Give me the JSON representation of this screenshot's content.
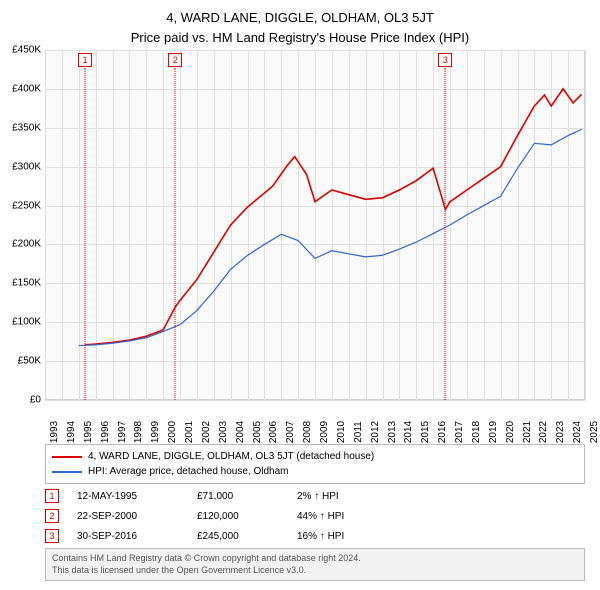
{
  "header": {
    "address": "4, WARD LANE, DIGGLE, OLDHAM, OL3 5JT",
    "subtitle": "Price paid vs. HM Land Registry's House Price Index (HPI)"
  },
  "chart": {
    "type": "line",
    "background_color": "#fafafa",
    "grid_color": "#e0e0e0",
    "border_color": "#d0d0d0",
    "x": {
      "min": 1993,
      "max": 2025,
      "ticks": [
        1993,
        1994,
        1995,
        1996,
        1997,
        1998,
        1999,
        2000,
        2001,
        2002,
        2003,
        2004,
        2005,
        2006,
        2007,
        2008,
        2009,
        2010,
        2011,
        2012,
        2013,
        2014,
        2015,
        2016,
        2017,
        2018,
        2019,
        2020,
        2021,
        2022,
        2023,
        2024,
        2025
      ]
    },
    "y": {
      "min": 0,
      "max": 450000,
      "tick_step": 50000,
      "ticks": [
        0,
        50000,
        100000,
        150000,
        200000,
        250000,
        300000,
        350000,
        400000,
        450000
      ],
      "tick_labels": [
        "£0",
        "£50K",
        "£100K",
        "£150K",
        "£200K",
        "£250K",
        "£300K",
        "£350K",
        "£400K",
        "£450K"
      ]
    },
    "series": [
      {
        "name": "4, WARD LANE, DIGGLE, OLDHAM, OL3 5JT (detached house)",
        "color": "#dd0000",
        "line_width": 1.6,
        "points": [
          [
            1995.37,
            71000
          ],
          [
            1996,
            72000
          ],
          [
            1997,
            74000
          ],
          [
            1998,
            77000
          ],
          [
            1999,
            82000
          ],
          [
            2000,
            90000
          ],
          [
            2000.73,
            120000
          ],
          [
            2001,
            128000
          ],
          [
            2002,
            155000
          ],
          [
            2003,
            190000
          ],
          [
            2004,
            225000
          ],
          [
            2005,
            248000
          ],
          [
            2006.5,
            275000
          ],
          [
            2007.3,
            300000
          ],
          [
            2007.8,
            313000
          ],
          [
            2008.5,
            290000
          ],
          [
            2009,
            255000
          ],
          [
            2010,
            270000
          ],
          [
            2011,
            264000
          ],
          [
            2012,
            258000
          ],
          [
            2013,
            260000
          ],
          [
            2014,
            270000
          ],
          [
            2015,
            282000
          ],
          [
            2016,
            298000
          ],
          [
            2016.73,
            245000
          ],
          [
            2017,
            255000
          ],
          [
            2018,
            270000
          ],
          [
            2019,
            285000
          ],
          [
            2020,
            300000
          ],
          [
            2021,
            340000
          ],
          [
            2022,
            378000
          ],
          [
            2022.6,
            392000
          ],
          [
            2023,
            378000
          ],
          [
            2023.7,
            400000
          ],
          [
            2024.3,
            382000
          ],
          [
            2024.8,
            393000
          ]
        ]
      },
      {
        "name": "HPI: Average price, detached house, Oldham",
        "color": "#3366cc",
        "line_width": 1.2,
        "points": [
          [
            1995,
            70000
          ],
          [
            1996,
            71000
          ],
          [
            1997,
            73000
          ],
          [
            1998,
            76000
          ],
          [
            1999,
            80000
          ],
          [
            2000,
            88000
          ],
          [
            2001,
            97000
          ],
          [
            2002,
            115000
          ],
          [
            2003,
            140000
          ],
          [
            2004,
            168000
          ],
          [
            2005,
            186000
          ],
          [
            2006,
            200000
          ],
          [
            2007,
            213000
          ],
          [
            2008,
            205000
          ],
          [
            2009,
            182000
          ],
          [
            2010,
            192000
          ],
          [
            2011,
            188000
          ],
          [
            2012,
            184000
          ],
          [
            2013,
            186000
          ],
          [
            2014,
            194000
          ],
          [
            2015,
            203000
          ],
          [
            2016,
            214000
          ],
          [
            2017,
            225000
          ],
          [
            2018,
            238000
          ],
          [
            2019,
            250000
          ],
          [
            2020,
            262000
          ],
          [
            2021,
            298000
          ],
          [
            2022,
            330000
          ],
          [
            2023,
            328000
          ],
          [
            2024,
            340000
          ],
          [
            2024.8,
            348000
          ]
        ]
      }
    ],
    "markers": [
      {
        "label": "1",
        "x": 1995.37,
        "color": "#dd0000"
      },
      {
        "label": "2",
        "x": 2000.73,
        "color": "#dd0000"
      },
      {
        "label": "3",
        "x": 2016.73,
        "color": "#dd0000"
      }
    ]
  },
  "transactions": [
    {
      "label": "1",
      "date": "12-MAY-1995",
      "price": "£71,000",
      "change": "2% ↑ HPI",
      "color": "#dd0000"
    },
    {
      "label": "2",
      "date": "22-SEP-2000",
      "price": "£120,000",
      "change": "44% ↑ HPI",
      "color": "#dd0000"
    },
    {
      "label": "3",
      "date": "30-SEP-2016",
      "price": "£245,000",
      "change": "16% ↑ HPI",
      "color": "#dd0000"
    }
  ],
  "footer": {
    "line1": "Contains HM Land Registry data © Crown copyright and database right 2024.",
    "line2": "This data is licensed under the Open Government Licence v3.0."
  }
}
